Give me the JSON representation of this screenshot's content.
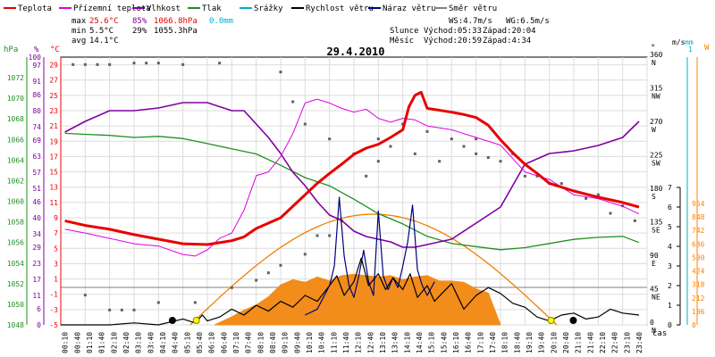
{
  "legend": [
    {
      "label": "Teplota",
      "color": "#e80000"
    },
    {
      "label": "Přízemní teplota",
      "color": "#e000e0"
    },
    {
      "label": "Vlhkost",
      "color": "#8000a0"
    },
    {
      "label": "Tlak",
      "color": "#209020"
    },
    {
      "label": "Srážky",
      "color": "#00b0d0"
    },
    {
      "label": "Rychlost větru",
      "color": "#000000"
    },
    {
      "label": "Náraz větru",
      "color": "#00007a"
    },
    {
      "label": "Směr větru",
      "color": "#808080"
    }
  ],
  "stats": {
    "max_label": "max",
    "max_temp": "25.6°C",
    "max_hum": "85%",
    "max_press": "1066.8hPa",
    "max_rain": "0.0mm",
    "min_label": "min",
    "min_temp": "5.5°C",
    "min_hum": "29%",
    "min_press": "1055.3hPa",
    "avg_label": "avg",
    "avg_temp": "14.1°C",
    "ws": "WS:4.7m/s",
    "wg": "WG:6.5m/s",
    "sun_label": "Slunce",
    "sun_rise": "Východ:05:33",
    "sun_set": "Západ:20:04",
    "moon_label": "Měsíc",
    "moon_rise": "Východ:20:59",
    "moon_set": "Západ:4:34"
  },
  "chart_data": {
    "type": "line",
    "title": "29.4.2010",
    "xlabel": "čas",
    "x_ticks": [
      "00:10",
      "00:40",
      "01:10",
      "01:40",
      "02:10",
      "02:40",
      "03:10",
      "03:40",
      "04:10",
      "04:40",
      "05:10",
      "05:40",
      "06:10",
      "06:40",
      "07:10",
      "07:40",
      "08:10",
      "08:40",
      "09:10",
      "09:40",
      "10:10",
      "10:40",
      "11:10",
      "11:40",
      "12:10",
      "12:40",
      "13:10",
      "13:40",
      "14:10",
      "14:40",
      "15:10",
      "15:40",
      "16:10",
      "16:40",
      "17:10",
      "17:40",
      "18:10",
      "18:40",
      "19:10",
      "19:40",
      "20:10",
      "20:40",
      "21:10",
      "21:40",
      "22:10",
      "22:40",
      "23:10",
      "23:40"
    ],
    "axes": {
      "pressure": {
        "unit": "hPa",
        "min": 1048,
        "max": 1074,
        "ticks": [
          "1048",
          "1050",
          "1052",
          "1054",
          "1056",
          "1058",
          "1060",
          "1062",
          "1064",
          "1066",
          "1068",
          "1070",
          "1072"
        ],
        "color": "#209020"
      },
      "humidity": {
        "unit": "%",
        "min": 0,
        "max": 100,
        "ticks": [
          "0",
          "6",
          "11",
          "17",
          "23",
          "29",
          "34",
          "40",
          "46",
          "51",
          "57",
          "63",
          "69",
          "74",
          "80",
          "86",
          "91",
          "97",
          "100"
        ],
        "color": "#8000a0"
      },
      "temperature": {
        "unit": "°C",
        "min": -5,
        "max": 30,
        "ticks": [
          "-5",
          "-3",
          "-1",
          "1",
          "3",
          "5",
          "7",
          "9",
          "11",
          "13",
          "15",
          "17",
          "19",
          "21",
          "23",
          "25",
          "27",
          "29"
        ],
        "color": "#e80000"
      },
      "direction": {
        "unit": "°",
        "labels": [
          [
            "360",
            "N"
          ],
          [
            "315",
            "NW"
          ],
          [
            "270",
            "W"
          ],
          [
            "225",
            "SW"
          ],
          [
            "180",
            "S"
          ],
          [
            "135",
            "SE"
          ],
          [
            "90",
            "E"
          ],
          [
            "45",
            "NE"
          ],
          [
            "0",
            "N"
          ]
        ]
      },
      "wind": {
        "unit": "m/s",
        "min": 0,
        "max": 7,
        "ticks": [
          "0",
          "1",
          "2",
          "3",
          "4",
          "5",
          "6",
          "7"
        ]
      },
      "rain": {
        "unit": "mm",
        "max": "1"
      },
      "solar": {
        "unit": "W",
        "ticks": [
          "0",
          "106",
          "212",
          "318",
          "424",
          "530",
          "636",
          "742",
          "848",
          "954"
        ],
        "color": "#ff8000"
      }
    },
    "series": [
      {
        "name": "Teplota",
        "unit": "°C",
        "color": "#e80000",
        "x": [
          0.17,
          1,
          2,
          3,
          4,
          5,
          6,
          7,
          7.5,
          8,
          9,
          9.5,
          10,
          10.5,
          11,
          11.5,
          12,
          12.5,
          13,
          13.5,
          14,
          14.25,
          14.5,
          14.75,
          15,
          16,
          16.5,
          17,
          17.5,
          18,
          18.5,
          19,
          19.5,
          20,
          20.5,
          21,
          22,
          23,
          23.67
        ],
        "values": [
          8.6,
          8,
          7.5,
          6.8,
          6.2,
          5.6,
          5.5,
          6,
          6.5,
          7.6,
          9,
          10.5,
          12,
          13.5,
          14.8,
          16,
          17.3,
          18.1,
          18.6,
          19.5,
          20.5,
          23.5,
          25,
          25.4,
          23.3,
          22.8,
          22.5,
          22.1,
          21.1,
          19.2,
          17.5,
          16,
          14.8,
          13.5,
          13,
          12.5,
          11.7,
          11,
          10.4
        ]
      },
      {
        "name": "Přízemní teplota",
        "unit": "°C",
        "color": "#e000e0",
        "x": [
          0.17,
          1,
          2,
          3,
          4,
          5,
          5.5,
          6,
          6.5,
          7,
          7.5,
          8,
          8.5,
          9,
          9.5,
          10,
          10.5,
          11,
          11.5,
          12,
          12.5,
          13,
          13.5,
          14,
          14.5,
          15,
          16,
          17,
          18,
          19,
          20,
          20.5,
          21,
          22,
          23,
          23.67
        ],
        "values": [
          7.5,
          7,
          6.3,
          5.6,
          5.3,
          4.2,
          4,
          4.8,
          6.3,
          7,
          10,
          14.5,
          15,
          17,
          20,
          24,
          24.5,
          24,
          23.3,
          22.8,
          23.2,
          22,
          21.5,
          22,
          21.8,
          21,
          20.5,
          19.5,
          18.5,
          15,
          14,
          13,
          12,
          11.5,
          10.5,
          9.5
        ]
      },
      {
        "name": "Vlhkost",
        "unit": "%",
        "color": "#8000a0",
        "x": [
          0.17,
          1,
          2,
          3,
          4,
          5,
          6,
          7,
          7.5,
          8,
          8.5,
          9,
          9.5,
          10,
          10.5,
          11,
          11.5,
          12,
          12.5,
          13,
          13.5,
          14,
          14.5,
          15,
          16,
          17,
          18,
          19,
          20,
          21,
          22,
          23,
          23.67
        ],
        "values": [
          72,
          76,
          80,
          80,
          81,
          83,
          83,
          80,
          80,
          75,
          70,
          64,
          57,
          52,
          46,
          41,
          39,
          35,
          33,
          32,
          31,
          29,
          29,
          30,
          32,
          38,
          44,
          60,
          64,
          65,
          67,
          70,
          76
        ]
      },
      {
        "name": "Tlak",
        "unit": "hPa",
        "color": "#209020",
        "x": [
          0.17,
          1,
          2,
          3,
          4,
          5,
          6,
          7,
          8,
          9,
          10,
          11,
          12,
          13,
          14,
          15,
          16,
          17,
          18,
          19,
          20,
          21,
          22,
          23,
          23.67
        ],
        "values": [
          1066.6,
          1066.5,
          1066.4,
          1066.2,
          1066.3,
          1066.1,
          1065.6,
          1065.1,
          1064.6,
          1063.5,
          1062.3,
          1061.5,
          1060.2,
          1058.8,
          1057.8,
          1056.6,
          1055.9,
          1055.6,
          1055.3,
          1055.5,
          1055.9,
          1056.3,
          1056.5,
          1056.6,
          1056.0
        ]
      },
      {
        "name": "Rychlost větru",
        "unit": "m/s",
        "color": "#000000",
        "x": [
          0,
          2,
          3,
          4,
          5,
          5.5,
          5.8,
          6,
          6.5,
          7,
          7.5,
          8,
          8.5,
          9,
          9.5,
          10,
          10.5,
          11,
          11.3,
          11.6,
          12,
          12.3,
          12.6,
          13,
          13.3,
          13.6,
          14,
          14.3,
          14.6,
          15,
          15.3,
          15.6,
          16,
          16.5,
          17,
          17.5,
          18,
          18.5,
          19,
          19.5,
          20,
          20.5,
          21,
          21.5,
          22,
          22.5,
          23,
          23.67
        ],
        "values": [
          0,
          0,
          0.1,
          0,
          0.3,
          0.1,
          0.5,
          0.2,
          0.4,
          0.8,
          0.5,
          1,
          0.7,
          1.2,
          0.9,
          1.5,
          1.2,
          2,
          2.5,
          1.5,
          2.2,
          3.4,
          2,
          2.6,
          1.8,
          2.4,
          1.8,
          2.6,
          1.4,
          2,
          1.2,
          1.6,
          2.1,
          0.8,
          1.5,
          1.9,
          1.6,
          1.1,
          0.9,
          0.4,
          0.2,
          0.5,
          0.6,
          0.3,
          0.4,
          0.8,
          0.6,
          0.5
        ]
      },
      {
        "name": "Náraz větru",
        "unit": "m/s",
        "color": "#00007a",
        "x": [
          10,
          10.5,
          11,
          11.2,
          11.4,
          11.6,
          11.8,
          12,
          12.2,
          12.4,
          12.6,
          12.8,
          13,
          13.2,
          13.4,
          13.6,
          13.8,
          14,
          14.2,
          14.4,
          14.6,
          14.8,
          15,
          15.3
        ],
        "values": [
          0.5,
          0.8,
          2,
          3,
          6.5,
          3.5,
          2,
          1.4,
          2.5,
          3.8,
          2.2,
          1.5,
          5.8,
          2.5,
          1.8,
          2.4,
          1.9,
          3,
          4.2,
          6.1,
          2.8,
          2,
          1.5,
          2.2
        ]
      },
      {
        "name": "Směr větru",
        "unit": "°",
        "color": "#808080"
      },
      {
        "name": "Sluneční záření",
        "unit": "W",
        "color": "#ff8000"
      }
    ],
    "sun_points": [
      {
        "x": 5.55,
        "label": "rise"
      },
      {
        "x": 20.07,
        "label": "set"
      }
    ],
    "moon_points": [
      {
        "x": 4.57,
        "label": "set"
      },
      {
        "x": 20.98,
        "label": "rise"
      }
    ]
  }
}
